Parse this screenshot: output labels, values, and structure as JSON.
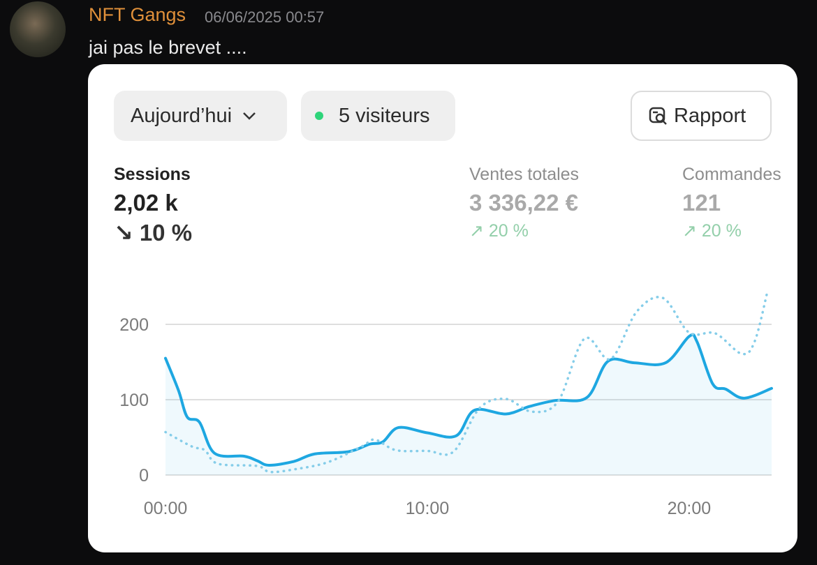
{
  "message": {
    "author": "NFT Gangs",
    "timestamp": "06/06/2025 00:57",
    "text": "jai pas le brevet ...."
  },
  "card": {
    "range_button": "Aujourd’hui",
    "visitors": "5 visiteurs",
    "report_button": "Rapport",
    "metrics": [
      {
        "label": "Sessions",
        "value": "2,02 k",
        "change": "10 %"
      },
      {
        "label": "Ventes totales",
        "value": "3 336,22 €",
        "change": "20 %"
      },
      {
        "label": "Commandes",
        "value": "121",
        "change": "20 %"
      }
    ],
    "chart": {
      "type": "line",
      "xlim": [
        0,
        23.15
      ],
      "xticks": [
        {
          "value": 0,
          "label": "00:00"
        },
        {
          "value": 10,
          "label": "10:00"
        },
        {
          "value": 20,
          "label": "20:00"
        }
      ],
      "ylim": [
        0,
        200
      ],
      "yticks": [
        0,
        100,
        200
      ],
      "grid": true,
      "series": [
        {
          "color": "#1ea7e1",
          "style": "solid",
          "area": true,
          "x": [
            0,
            0.5,
            0.83,
            1.3,
            1.87,
            3,
            3.5,
            3.95,
            4.9,
            5.7,
            7,
            7.8,
            8.3,
            8.9,
            10,
            11.1,
            11.8,
            13,
            13.9,
            14.9,
            16.1,
            16.9,
            17.9,
            19.1,
            20,
            20.3,
            20.9,
            21.4,
            22.1,
            23.15
          ],
          "values": [
            155,
            112,
            77,
            70,
            29,
            25,
            19,
            13,
            18,
            28,
            31,
            41,
            44,
            63,
            56,
            52,
            86,
            81,
            91,
            99,
            103,
            151,
            149,
            149,
            184,
            177,
            121,
            114,
            102,
            115
          ]
        },
        {
          "color": "#85cde9",
          "style": "dotted",
          "area": false,
          "x": [
            0,
            1,
            1.5,
            2,
            3.5,
            4,
            5,
            6.2,
            7.5,
            8,
            8.8,
            10,
            11,
            12,
            13,
            14,
            15,
            16,
            17,
            18,
            19,
            20,
            21,
            22,
            22.5,
            23
          ],
          "values": [
            57,
            38,
            33,
            15,
            12,
            4,
            8,
            17,
            38,
            47,
            33,
            32,
            31,
            89,
            101,
            84,
            98,
            181,
            154,
            217,
            235,
            189,
            188,
            161,
            177,
            245
          ]
        }
      ]
    }
  }
}
